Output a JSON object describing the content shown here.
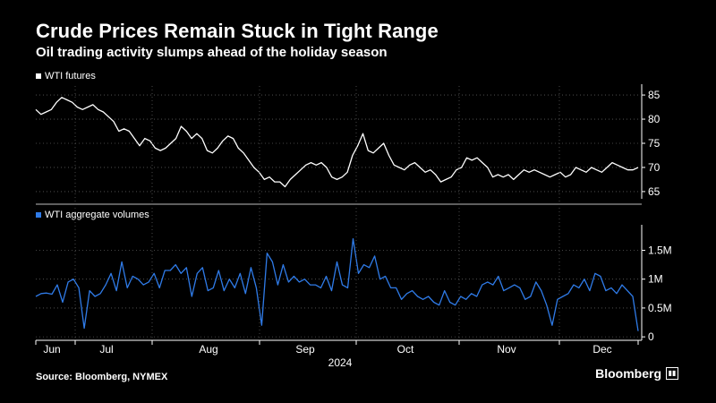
{
  "title": "Crude Prices Remain Stuck in Tight Range",
  "subtitle": "Oil trading activity slumps ahead of the holiday season",
  "source": "Source: Bloomberg, NYMEX",
  "brand": "Bloomberg",
  "colors": {
    "background": "#000000",
    "futures": "#ffffff",
    "volumes": "#2f7be8",
    "grid": "#5a5a5a"
  },
  "chart_data": [
    {
      "type": "line",
      "series": [
        {
          "name": "WTI futures",
          "color": "#ffffff"
        }
      ],
      "yticks": [
        65,
        70,
        75,
        80,
        85
      ],
      "ylim": [
        63.5,
        86.5
      ],
      "values": [
        82,
        81,
        81.5,
        82,
        83.5,
        84.5,
        84,
        83.5,
        82.5,
        82,
        82.5,
        83,
        82,
        81.5,
        80.5,
        79.5,
        77.5,
        78,
        77.5,
        76,
        74.5,
        76,
        75.5,
        74,
        73.5,
        74,
        75,
        76,
        78.5,
        77.5,
        76,
        77,
        76,
        73.5,
        73,
        74,
        75.5,
        76.5,
        76,
        74,
        73,
        71.5,
        70,
        69,
        67.5,
        68,
        67,
        67,
        66,
        67.5,
        68.5,
        69.5,
        70.5,
        71,
        70.5,
        71,
        70,
        68,
        67.5,
        68,
        69,
        72.5,
        74.5,
        77,
        73.5,
        73,
        74,
        75,
        72.5,
        70.5,
        70,
        69.5,
        70.5,
        71,
        70,
        69,
        69.5,
        68.5,
        67,
        67.5,
        68,
        69.5,
        70,
        72,
        71.5,
        72,
        71,
        70,
        68,
        68.5,
        68,
        68.5,
        67.5,
        68.5,
        69.5,
        69,
        69.5,
        69,
        68.5,
        68,
        68.5,
        69,
        68,
        68.5,
        70,
        69.5,
        69,
        70,
        69.5,
        69,
        70,
        71,
        70.5,
        70,
        69.5,
        69.5,
        70
      ],
      "grid": true
    },
    {
      "type": "line",
      "series": [
        {
          "name": "WTI aggregate volumes",
          "color": "#2f7be8"
        }
      ],
      "yticks": [
        0,
        500000,
        1000000,
        1500000
      ],
      "ytick_labels": [
        "0",
        "0.5M",
        "1M",
        "1.5M"
      ],
      "ylim": [
        -60000,
        1880000
      ],
      "values": [
        700000,
        750000,
        760000,
        740000,
        900000,
        600000,
        950000,
        1000000,
        850000,
        150000,
        800000,
        700000,
        750000,
        900000,
        1100000,
        800000,
        1300000,
        850000,
        1050000,
        1000000,
        900000,
        950000,
        1100000,
        850000,
        1150000,
        1150000,
        1250000,
        1100000,
        1200000,
        700000,
        1100000,
        1200000,
        800000,
        850000,
        1150000,
        800000,
        1000000,
        850000,
        1100000,
        750000,
        1200000,
        850000,
        200000,
        1450000,
        1300000,
        900000,
        1250000,
        950000,
        1050000,
        950000,
        1000000,
        900000,
        900000,
        850000,
        1050000,
        800000,
        1300000,
        900000,
        850000,
        1700000,
        1100000,
        1250000,
        1200000,
        1400000,
        1000000,
        1050000,
        850000,
        850000,
        650000,
        750000,
        800000,
        700000,
        650000,
        700000,
        600000,
        550000,
        800000,
        600000,
        550000,
        700000,
        650000,
        750000,
        700000,
        900000,
        950000,
        900000,
        1050000,
        800000,
        850000,
        900000,
        850000,
        650000,
        700000,
        950000,
        800000,
        550000,
        200000,
        650000,
        700000,
        750000,
        900000,
        850000,
        1000000,
        800000,
        1100000,
        1050000,
        800000,
        850000,
        750000,
        900000,
        800000,
        700000,
        100000
      ],
      "grid": true
    }
  ],
  "x_axis": {
    "months": [
      "Jun",
      "Jul",
      "Aug",
      "Sep",
      "Oct",
      "Nov",
      "Dec"
    ],
    "year": "2024"
  }
}
